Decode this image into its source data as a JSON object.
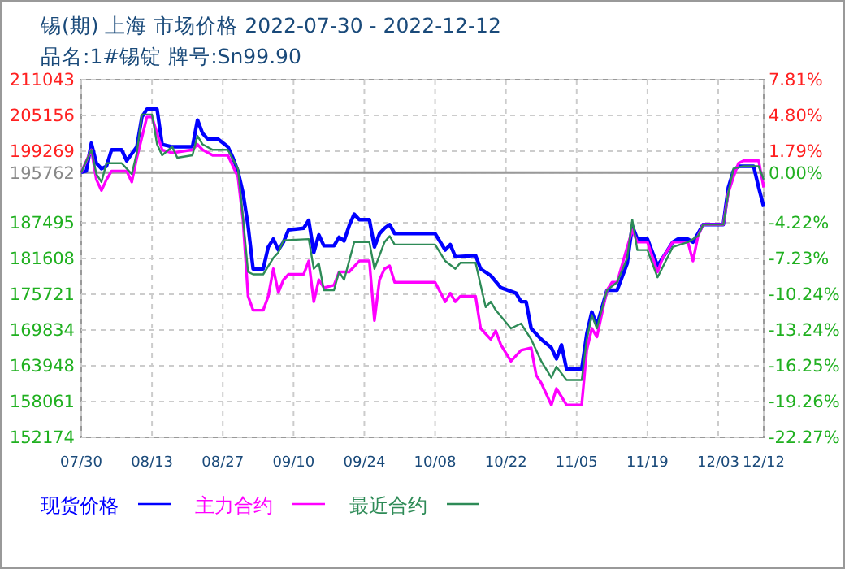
{
  "chart_data": {
    "type": "line",
    "title": "锡(期) 上海 市场价格 2022-07-30 - 2022-12-12",
    "subtitle": "品名:1#锡锭 牌号:Sn99.90",
    "xlim": [
      "2022-07-30",
      "2022-12-12"
    ],
    "xticks": [
      {
        "value": "2022-07-30",
        "label": "07/30"
      },
      {
        "value": "2022-08-13",
        "label": "08/13"
      },
      {
        "value": "2022-08-27",
        "label": "08/27"
      },
      {
        "value": "2022-09-10",
        "label": "09/10"
      },
      {
        "value": "2022-09-24",
        "label": "09/24"
      },
      {
        "value": "2022-10-08",
        "label": "10/08"
      },
      {
        "value": "2022-10-22",
        "label": "10/22"
      },
      {
        "value": "2022-11-05",
        "label": "11/05"
      },
      {
        "value": "2022-11-19",
        "label": "11/19"
      },
      {
        "value": "2022-12-03",
        "label": "12/03"
      },
      {
        "value": "2022-12-12",
        "label": "12/12"
      }
    ],
    "ylim": [
      152174,
      211043
    ],
    "yticks": [
      152174,
      158061,
      163948,
      169834,
      175721,
      181608,
      187495,
      195762,
      199269,
      205156,
      211043
    ],
    "y2lim": [
      -22.27,
      7.81
    ],
    "y2ticks": [
      {
        "value": -22.27,
        "label": "-22.27%"
      },
      {
        "value": -19.26,
        "label": "-19.26%"
      },
      {
        "value": -16.25,
        "label": "-16.25%"
      },
      {
        "value": -13.24,
        "label": "-13.24%"
      },
      {
        "value": -10.24,
        "label": "-10.24%"
      },
      {
        "value": -7.23,
        "label": "-7.23%"
      },
      {
        "value": -4.22,
        "label": "-4.22%"
      },
      {
        "value": 0,
        "label": "0.00%"
      },
      {
        "value": 1.79,
        "label": "1.79%"
      },
      {
        "value": 4.8,
        "label": "4.80%"
      },
      {
        "value": 7.81,
        "label": "7.81%"
      }
    ],
    "ref_lines": [
      {
        "axis": "y",
        "value": 195762,
        "color": "#999999"
      }
    ],
    "grid": true,
    "legend": "bottom",
    "series": [
      {
        "name": "现货价格",
        "color": "#0000ff",
        "x": [
          "2022-07-30",
          "2022-07-31",
          "2022-08-01",
          "2022-08-02",
          "2022-08-03",
          "2022-08-04",
          "2022-08-05",
          "2022-08-07",
          "2022-08-08",
          "2022-08-10",
          "2022-08-11",
          "2022-08-12",
          "2022-08-14",
          "2022-08-15",
          "2022-08-17",
          "2022-08-21",
          "2022-08-22",
          "2022-08-23",
          "2022-08-24",
          "2022-08-26",
          "2022-08-28",
          "2022-08-29",
          "2022-08-30",
          "2022-08-31",
          "2022-09-01",
          "2022-09-02",
          "2022-09-04",
          "2022-09-05",
          "2022-09-06",
          "2022-09-07",
          "2022-09-08",
          "2022-09-09",
          "2022-09-12",
          "2022-09-13",
          "2022-09-14",
          "2022-09-15",
          "2022-09-16",
          "2022-09-18",
          "2022-09-19",
          "2022-09-20",
          "2022-09-21",
          "2022-09-22",
          "2022-09-23",
          "2022-09-25",
          "2022-09-26",
          "2022-09-27",
          "2022-09-28",
          "2022-09-29",
          "2022-09-30",
          "2022-10-08",
          "2022-10-10",
          "2022-10-11",
          "2022-10-12",
          "2022-10-16",
          "2022-10-17",
          "2022-10-19",
          "2022-10-21",
          "2022-10-24",
          "2022-10-25",
          "2022-10-26",
          "2022-10-27",
          "2022-10-29",
          "2022-10-31",
          "2022-11-01",
          "2022-11-02",
          "2022-11-03",
          "2022-11-06",
          "2022-11-07",
          "2022-11-08",
          "2022-11-09",
          "2022-11-11",
          "2022-11-13",
          "2022-11-15",
          "2022-11-16",
          "2022-11-17",
          "2022-11-19",
          "2022-11-21",
          "2022-11-22",
          "2022-11-24",
          "2022-11-25",
          "2022-11-27",
          "2022-11-28",
          "2022-11-29",
          "2022-11-30",
          "2022-12-04",
          "2022-12-05",
          "2022-12-06",
          "2022-12-07",
          "2022-12-10",
          "2022-12-11",
          "2022-12-12"
        ],
        "values": [
          195800,
          196000,
          200600,
          197300,
          196400,
          196800,
          199500,
          199500,
          197700,
          200000,
          204900,
          206200,
          206200,
          200400,
          200000,
          200000,
          204400,
          202200,
          201300,
          201300,
          200000,
          198200,
          196000,
          192400,
          187000,
          179900,
          179900,
          183500,
          184800,
          183000,
          184300,
          186300,
          186600,
          187900,
          182600,
          185500,
          183700,
          183700,
          185100,
          184500,
          187000,
          188900,
          188000,
          188000,
          183500,
          185700,
          186600,
          187200,
          185700,
          185700,
          183000,
          183900,
          181900,
          182100,
          179900,
          178800,
          176800,
          175900,
          174500,
          174500,
          170100,
          168300,
          166900,
          165100,
          167400,
          163400,
          163400,
          169200,
          172800,
          170600,
          176400,
          176400,
          180800,
          187000,
          184800,
          184800,
          180400,
          181700,
          184300,
          184800,
          184800,
          184300,
          185700,
          187200,
          187200,
          193300,
          196000,
          196800,
          196800,
          193300,
          190100
        ]
      },
      {
        "name": "主力合约",
        "color": "#ff00ff",
        "x": [
          "2022-07-30",
          "2022-08-01",
          "2022-08-02",
          "2022-08-03",
          "2022-08-04",
          "2022-08-05",
          "2022-08-08",
          "2022-08-09",
          "2022-08-10",
          "2022-08-12",
          "2022-08-13",
          "2022-08-14",
          "2022-08-15",
          "2022-08-17",
          "2022-08-21",
          "2022-08-22",
          "2022-08-23",
          "2022-08-25",
          "2022-08-28",
          "2022-08-30",
          "2022-08-31",
          "2022-09-01",
          "2022-09-02",
          "2022-09-04",
          "2022-09-05",
          "2022-09-06",
          "2022-09-07",
          "2022-09-08",
          "2022-09-09",
          "2022-09-12",
          "2022-09-13",
          "2022-09-14",
          "2022-09-15",
          "2022-09-16",
          "2022-09-18",
          "2022-09-19",
          "2022-09-21",
          "2022-09-23",
          "2022-09-25",
          "2022-09-26",
          "2022-09-27",
          "2022-09-28",
          "2022-09-29",
          "2022-09-30",
          "2022-10-08",
          "2022-10-10",
          "2022-10-11",
          "2022-10-12",
          "2022-10-13",
          "2022-10-16",
          "2022-10-17",
          "2022-10-19",
          "2022-10-20",
          "2022-10-21",
          "2022-10-23",
          "2022-10-25",
          "2022-10-27",
          "2022-10-28",
          "2022-10-29",
          "2022-10-31",
          "2022-11-01",
          "2022-11-03",
          "2022-11-06",
          "2022-11-07",
          "2022-11-08",
          "2022-11-09",
          "2022-11-11",
          "2022-11-12",
          "2022-11-13",
          "2022-11-15",
          "2022-11-16",
          "2022-11-17",
          "2022-11-19",
          "2022-11-21",
          "2022-11-22",
          "2022-11-24",
          "2022-11-27",
          "2022-11-28",
          "2022-11-29",
          "2022-11-30",
          "2022-12-04",
          "2022-12-05",
          "2022-12-06",
          "2022-12-07",
          "2022-12-08",
          "2022-12-11",
          "2022-12-12"
        ],
        "values": [
          195800,
          199500,
          194600,
          192800,
          194600,
          196000,
          196000,
          194200,
          198200,
          204900,
          204900,
          202200,
          199500,
          199000,
          199500,
          200400,
          199500,
          198600,
          198600,
          195000,
          187900,
          175400,
          173100,
          173100,
          175400,
          179900,
          176000,
          178100,
          179000,
          179000,
          181200,
          174500,
          178100,
          176800,
          177200,
          179400,
          179400,
          181200,
          181200,
          171400,
          178100,
          179900,
          180400,
          177700,
          177700,
          174500,
          175900,
          174500,
          175400,
          175400,
          170100,
          168300,
          169700,
          167400,
          164700,
          166500,
          166900,
          162400,
          161100,
          157500,
          160200,
          157500,
          157500,
          166500,
          170100,
          168700,
          176400,
          177700,
          177700,
          183500,
          186300,
          184300,
          184300,
          179400,
          181700,
          184300,
          184300,
          181200,
          185300,
          187200,
          187200,
          192400,
          195000,
          197300,
          197700,
          197700,
          193300
        ]
      },
      {
        "name": "最近合约",
        "color": "#2e8b57",
        "x": [
          "2022-07-30",
          "2022-08-01",
          "2022-08-02",
          "2022-08-03",
          "2022-08-04",
          "2022-08-07",
          "2022-08-09",
          "2022-08-10",
          "2022-08-11",
          "2022-08-13",
          "2022-08-14",
          "2022-08-15",
          "2022-08-17",
          "2022-08-18",
          "2022-08-21",
          "2022-08-22",
          "2022-08-23",
          "2022-08-25",
          "2022-08-28",
          "2022-08-30",
          "2022-08-31",
          "2022-09-01",
          "2022-09-02",
          "2022-09-04",
          "2022-09-06",
          "2022-09-07",
          "2022-09-08",
          "2022-09-13",
          "2022-09-14",
          "2022-09-15",
          "2022-09-16",
          "2022-09-18",
          "2022-09-19",
          "2022-09-20",
          "2022-09-22",
          "2022-09-25",
          "2022-09-26",
          "2022-09-28",
          "2022-09-29",
          "2022-09-30",
          "2022-10-08",
          "2022-10-10",
          "2022-10-12",
          "2022-10-13",
          "2022-10-16",
          "2022-10-18",
          "2022-10-19",
          "2022-10-20",
          "2022-10-23",
          "2022-10-25",
          "2022-10-27",
          "2022-10-29",
          "2022-10-31",
          "2022-11-01",
          "2022-11-03",
          "2022-11-06",
          "2022-11-07",
          "2022-11-08",
          "2022-11-09",
          "2022-11-11",
          "2022-11-13",
          "2022-11-15",
          "2022-11-16",
          "2022-11-17",
          "2022-11-19",
          "2022-11-21",
          "2022-11-24",
          "2022-11-27",
          "2022-11-29",
          "2022-11-30",
          "2022-12-04",
          "2022-12-05",
          "2022-12-06",
          "2022-12-08",
          "2022-12-11",
          "2022-12-12"
        ],
        "values": [
          195800,
          199500,
          195500,
          194200,
          197300,
          197300,
          195500,
          199000,
          205300,
          205300,
          200400,
          198600,
          200000,
          198200,
          198600,
          201800,
          200400,
          199500,
          199500,
          196400,
          188300,
          179400,
          179000,
          179000,
          181700,
          182600,
          184600,
          184800,
          179900,
          180800,
          176400,
          176400,
          179400,
          178100,
          184300,
          184300,
          179900,
          184300,
          185300,
          183900,
          183900,
          181200,
          179900,
          180900,
          180900,
          173600,
          174500,
          173100,
          170100,
          170900,
          168300,
          164700,
          162000,
          163800,
          161600,
          161600,
          168300,
          172300,
          170100,
          176400,
          177700,
          181700,
          188000,
          183000,
          183000,
          178500,
          183500,
          184300,
          185300,
          187200,
          187200,
          192400,
          196400,
          196800,
          196800,
          194600
        ]
      }
    ]
  }
}
